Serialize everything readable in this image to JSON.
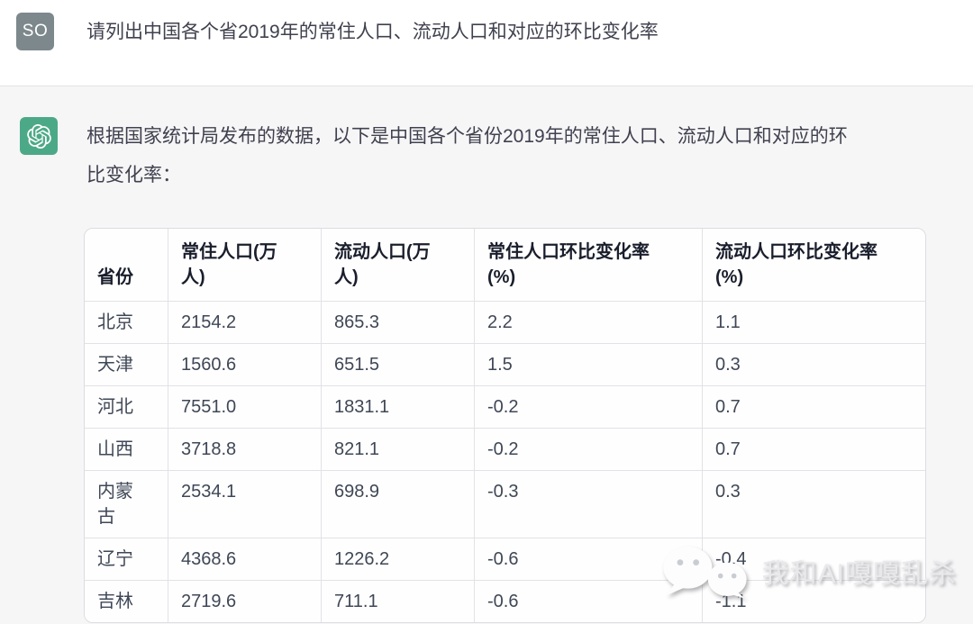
{
  "user_message": {
    "avatar_label": "SO",
    "text": "请列出中国各个省2019年的常住人口、流动人口和对应的环比变化率"
  },
  "assistant_message": {
    "avatar_icon": "openai-logo",
    "text_line1": "根据国家统计局发布的数据，以下是中国各个省份2019年的常住人口、流动人口和对应的环",
    "text_line2": "比变化率："
  },
  "table": {
    "headers": [
      "省份",
      "常住人口(万\n人)",
      "流动人口(万\n人)",
      "常住人口环比变化率\n(%)",
      "流动人口环比变化率\n(%)"
    ],
    "rows": [
      [
        "北京",
        "2154.2",
        "865.3",
        "2.2",
        "1.1"
      ],
      [
        "天津",
        "1560.6",
        "651.5",
        "1.5",
        "0.3"
      ],
      [
        "河北",
        "7551.0",
        "1831.1",
        "-0.2",
        "0.7"
      ],
      [
        "山西",
        "3718.8",
        "821.1",
        "-0.2",
        "0.7"
      ],
      [
        "内蒙\n古",
        "2534.1",
        "698.9",
        "-0.3",
        "0.3"
      ],
      [
        "辽宁",
        "4368.6",
        "1226.2",
        "-0.6",
        "-0.4"
      ],
      [
        "吉林",
        "2719.6",
        "711.1",
        "-0.6",
        "-1.1"
      ]
    ]
  },
  "watermark": {
    "icon": "wechat-icon",
    "text": "我和AI嘎嘎乱杀"
  },
  "colors": {
    "assistant_bg": "#f6f6f7",
    "user_avatar_bg": "#7d888d",
    "assistant_avatar_bg": "#4ca987",
    "table_border": "#e2e2e7",
    "header_text": "#1a1e2c",
    "body_text": "#3f4756"
  }
}
